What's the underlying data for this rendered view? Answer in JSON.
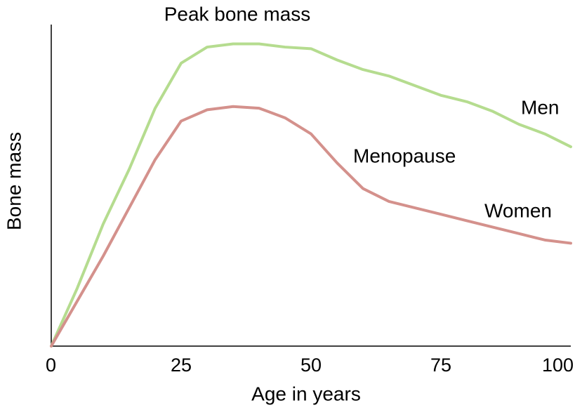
{
  "chart_data": {
    "type": "line",
    "xlabel": "Age in years",
    "ylabel": "Bone mass",
    "annotations": [
      "Peak bone mass",
      "Menopause"
    ],
    "x": [
      0,
      5,
      10,
      15,
      20,
      25,
      30,
      35,
      40,
      45,
      50,
      55,
      60,
      65,
      70,
      75,
      80,
      85,
      90,
      95,
      100
    ],
    "series": [
      {
        "name": "Men",
        "color": "#b5dc8f",
        "values": [
          0,
          18,
          38,
          55,
          74,
          88,
          93,
          94,
          94,
          93,
          92.5,
          89,
          86,
          84,
          81,
          78,
          76,
          73,
          69,
          66,
          62
        ]
      },
      {
        "name": "Women",
        "color": "#d4918c",
        "values": [
          0,
          14,
          28,
          43,
          58,
          70,
          73.5,
          74.5,
          74,
          71,
          66,
          57,
          49,
          45,
          43,
          41,
          39,
          37,
          35,
          33,
          32
        ]
      }
    ],
    "xlim": [
      0,
      100
    ],
    "xticks": [
      0,
      25,
      50,
      75,
      100
    ],
    "ylim": [
      0,
      100
    ],
    "grid": false
  }
}
